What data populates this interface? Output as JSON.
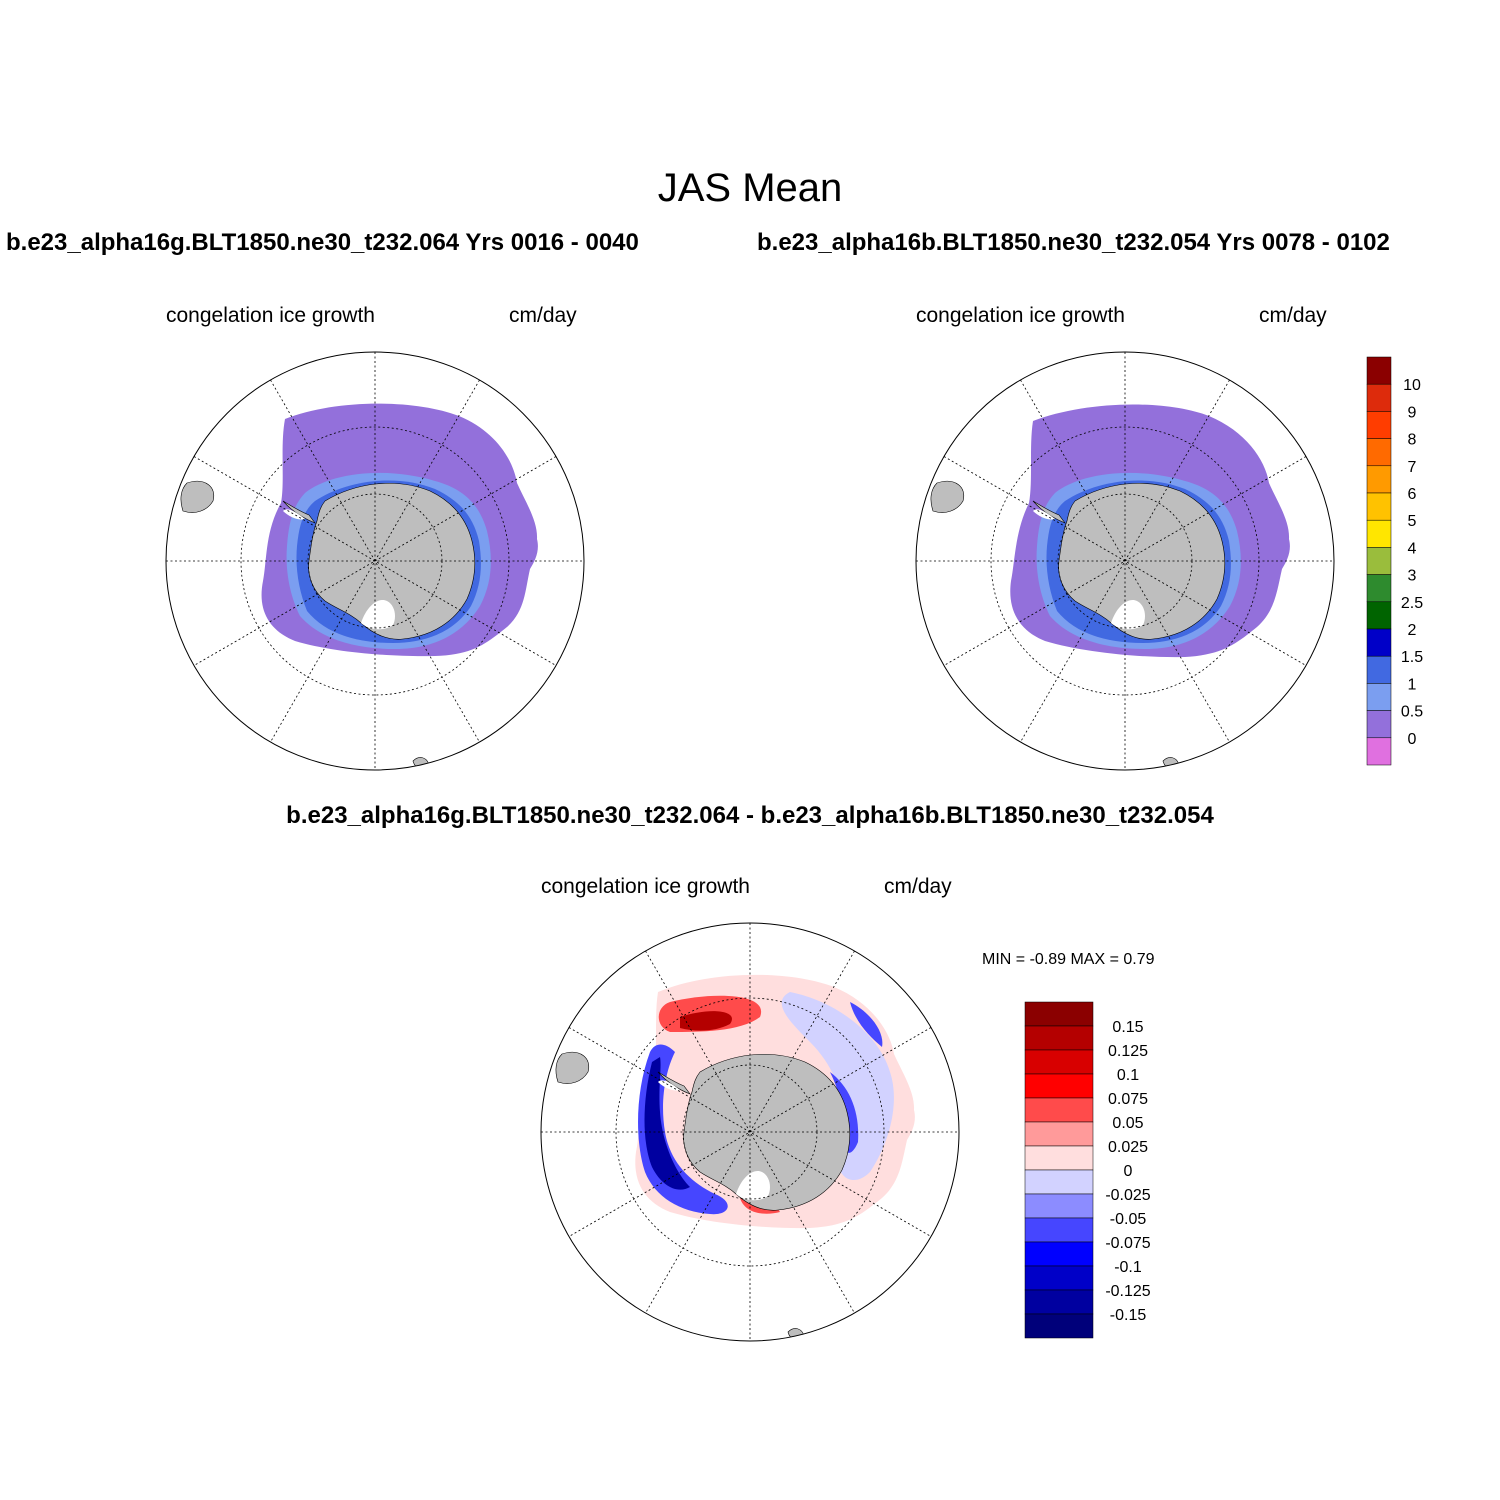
{
  "title": "JAS Mean",
  "panels": [
    {
      "run_title": "b.e23_alpha16g.BLT1850.ne30_t232.064  Yrs 0016 - 0040",
      "variable": "congelation ice growth",
      "units": "cm/day"
    },
    {
      "run_title": "b.e23_alpha16b.BLT1850.ne30_t232.054  Yrs 0078 - 0102",
      "variable": "congelation ice growth",
      "units": "cm/day"
    },
    {
      "run_title": "b.e23_alpha16g.BLT1850.ne30_t232.064 - b.e23_alpha16b.BLT1850.ne30_t232.054",
      "variable": "congelation ice growth",
      "units": "cm/day",
      "min_max": "MIN =  -0.89 MAX =   0.79"
    }
  ],
  "colorbar_main": {
    "labels": [
      "10",
      "9",
      "8",
      "7",
      "6",
      "5",
      "4",
      "3",
      "2.5",
      "2",
      "1.5",
      "1",
      "0.5",
      "0"
    ],
    "colors": [
      "#8b0000",
      "#dd2b0c",
      "#ff3d00",
      "#ff6a00",
      "#ff9a00",
      "#ffc200",
      "#ffe600",
      "#9abd3c",
      "#2e8b2e",
      "#006400",
      "#0000c8",
      "#4169e1",
      "#7b9ef0",
      "#9370db",
      "#e070e0"
    ]
  },
  "colorbar_diff": {
    "labels": [
      "0.15",
      "0.125",
      "0.1",
      "0.075",
      "0.05",
      "0.025",
      "0",
      "-0.025",
      "-0.05",
      "-0.075",
      "-0.1",
      "-0.125",
      "-0.15"
    ],
    "colors": [
      "#8b0000",
      "#b40000",
      "#d80000",
      "#ff0000",
      "#ff4b4b",
      "#ff9a9a",
      "#ffdede",
      "#d2d2ff",
      "#8c8cff",
      "#4646ff",
      "#0000ff",
      "#0000c8",
      "#0000a0",
      "#00007a"
    ]
  },
  "map_colors": {
    "land": "#bebebe",
    "sea_ice_main": "#9370db",
    "shelf_light": "#7b9ef0",
    "shelf_mid": "#4169e1",
    "shelf_dark": "#0000c8",
    "shelf_green": "#2e8b2e",
    "shelf_yellow": "#ffe600",
    "diff_neutral_pos": "#ffdede",
    "diff_neutral_neg": "#d2d2ff",
    "diff_pos": "#ff4b4b",
    "diff_pos_strong": "#b40000",
    "diff_neg": "#4646ff",
    "diff_neg_strong": "#0000a0"
  }
}
